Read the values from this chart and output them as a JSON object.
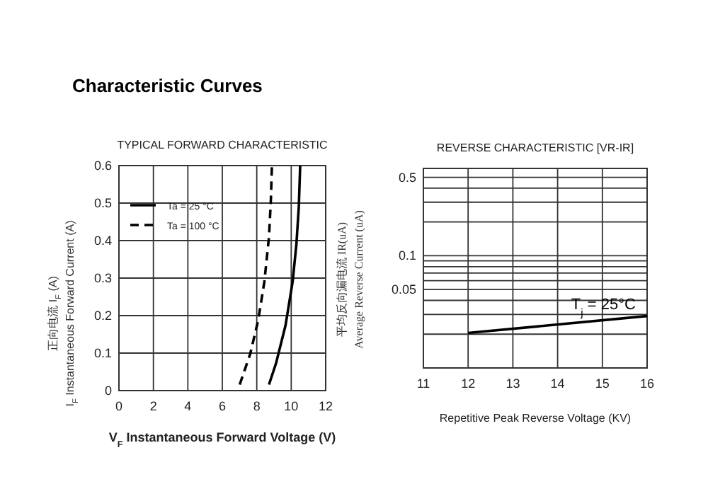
{
  "chart_data": [
    {
      "type": "line",
      "title": "TYPICAL FORWARD CHARACTERISTIC",
      "xlabel": "V$_{F}$  Instantaneous Forward Voltage (V)",
      "ylabel": "正向电流    I$_{F}$ (A)\nI$_{F}$ Instantaneous Forward Current (A)",
      "annotations": [
        "Characteristic Curves"
      ],
      "xlim": [
        0,
        12
      ],
      "ylim": [
        0,
        0.6
      ],
      "xticks": [
        0,
        2,
        4,
        6,
        8,
        10,
        12
      ],
      "yticks": [
        0,
        0.1,
        0.2,
        0.3,
        0.4,
        0.5,
        0.6
      ],
      "grid": true,
      "legend": "top left",
      "series": [
        {
          "name": "Ta = 25 °C",
          "color": "#000000",
          "line_style": "solid",
          "x": [
            8.71,
            9.12,
            9.67,
            10.08,
            10.3,
            10.44,
            10.52
          ],
          "values": [
            0.016,
            0.073,
            0.174,
            0.29,
            0.39,
            0.49,
            0.6
          ]
        },
        {
          "name": "Ta = 100 °C",
          "color": "#000000",
          "line_style": "dashed",
          "x": [
            7.01,
            7.62,
            8.08,
            8.44,
            8.71,
            8.82,
            8.88
          ],
          "values": [
            0.016,
            0.098,
            0.187,
            0.29,
            0.41,
            0.51,
            0.6
          ]
        }
      ]
    },
    {
      "type": "line",
      "title": "REVERSE CHARACTERISTIC [VR-IR]",
      "xlabel": "Repetitive Peak Reverse Voltage (KV)",
      "ylabel": "平均反向漏电流    IR(uA)\nAverage Reverse   Current    (uA)",
      "log": "y",
      "xlim": [
        11,
        16
      ],
      "ylim": [
        0.01,
        0.6
      ],
      "xticks": [
        11,
        12,
        13,
        14,
        15,
        16
      ],
      "yticks": [
        {
          "value": 0.02,
          "label": null
        },
        {
          "value": 0.03,
          "label": null
        },
        {
          "value": 0.04,
          "label": null
        },
        0.05,
        {
          "value": 0.06,
          "label": null
        },
        {
          "value": 0.07,
          "label": null
        },
        {
          "value": 0.08,
          "label": null
        },
        {
          "value": 0.09,
          "label": null
        },
        0.1,
        {
          "value": 0.2,
          "label": null
        },
        {
          "value": 0.3,
          "label": null
        },
        {
          "value": 0.4,
          "label": null
        },
        0.5
      ],
      "grid": true,
      "series": [
        {
          "name": "T$_{j}$ = 25°C",
          "color": "#000000",
          "line_style": "solid",
          "x": [
            12,
            16
          ],
          "values": [
            0.0205,
            0.029
          ]
        }
      ]
    }
  ]
}
